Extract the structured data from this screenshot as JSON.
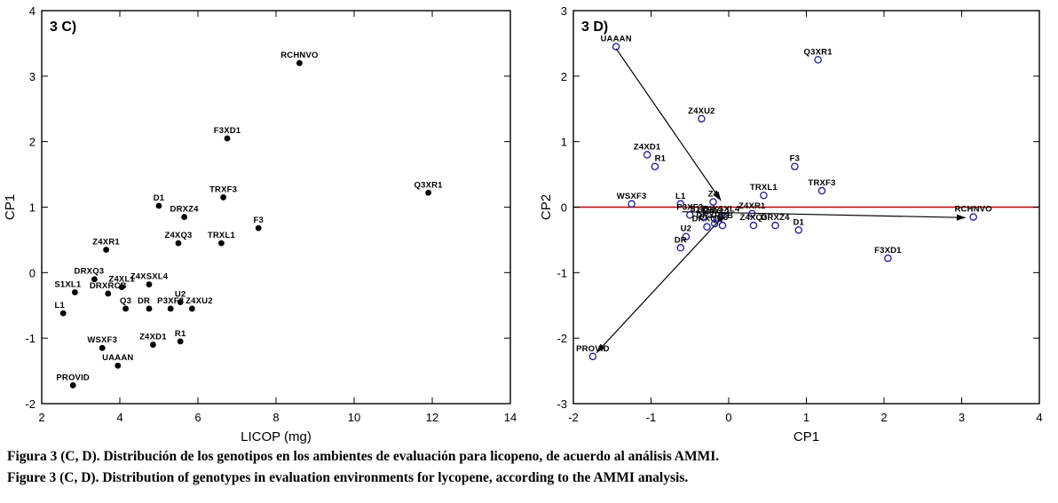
{
  "figure": {
    "caption_es": "Figura 3 (C, D). Distribución de los genotipos en los ambientes de evaluación para licopeno, de acuerdo al análisis AMMI.",
    "caption_en": "Figure 3 (C, D). Distribution of genotypes in evaluation environments for lycopene, according to the AMMI analysis."
  },
  "chart_data": [
    {
      "type": "scatter",
      "panel_label": "3 C)",
      "xlabel": "LICOP (mg)",
      "ylabel": "CP1",
      "xlim": [
        2,
        14
      ],
      "ylim": [
        -2,
        4
      ],
      "xticks": [
        2,
        4,
        6,
        8,
        10,
        12,
        14
      ],
      "yticks": [
        -2,
        -1,
        0,
        1,
        2,
        3,
        4
      ],
      "grid": false,
      "marker": "filled-dot",
      "marker_color": "#000000",
      "points": [
        {
          "label": "RCHNVO",
          "x": 8.6,
          "y": 3.2
        },
        {
          "label": "F3XD1",
          "x": 6.75,
          "y": 2.05
        },
        {
          "label": "Q3XR1",
          "x": 11.9,
          "y": 1.22
        },
        {
          "label": "TRXF3",
          "x": 6.65,
          "y": 1.15
        },
        {
          "label": "D1",
          "x": 5.0,
          "y": 1.02
        },
        {
          "label": "DRXZ4",
          "x": 5.65,
          "y": 0.85
        },
        {
          "label": "F3",
          "x": 7.55,
          "y": 0.68
        },
        {
          "label": "Z4XQ3",
          "x": 5.5,
          "y": 0.45
        },
        {
          "label": "TRXL1",
          "x": 6.6,
          "y": 0.45
        },
        {
          "label": "Z4XR1",
          "x": 3.65,
          "y": 0.35
        },
        {
          "label": "DRXQ3",
          "x": 3.35,
          "y": -0.1,
          "dx": -6
        },
        {
          "label": "Z4XL1",
          "x": 4.05,
          "y": -0.22
        },
        {
          "label": "Z4XSXL4",
          "x": 4.75,
          "y": -0.18
        },
        {
          "label": "S1XL1",
          "x": 2.85,
          "y": -0.3,
          "dx": -8
        },
        {
          "label": "DRXRCB",
          "x": 3.7,
          "y": -0.32
        },
        {
          "label": "Q3",
          "x": 4.15,
          "y": -0.55
        },
        {
          "label": "DR",
          "x": 4.75,
          "y": -0.55,
          "dx": -6
        },
        {
          "label": "P3XF3",
          "x": 5.3,
          "y": -0.55
        },
        {
          "label": "U2",
          "x": 5.55,
          "y": -0.45
        },
        {
          "label": "Z4XU2",
          "x": 5.85,
          "y": -0.55,
          "dx": 8
        },
        {
          "label": "L1",
          "x": 2.55,
          "y": -0.62,
          "dx": -4
        },
        {
          "label": "WSXF3",
          "x": 3.55,
          "y": -1.15
        },
        {
          "label": "Z4XD1",
          "x": 4.85,
          "y": -1.1
        },
        {
          "label": "R1",
          "x": 5.55,
          "y": -1.05
        },
        {
          "label": "UAAAN",
          "x": 3.95,
          "y": -1.42
        },
        {
          "label": "PROVID",
          "x": 2.8,
          "y": -1.72
        }
      ]
    },
    {
      "type": "scatter",
      "panel_label": "3 D)",
      "xlabel": "CP1",
      "ylabel": "CP2",
      "xlim": [
        -2,
        4
      ],
      "ylim": [
        -3,
        3
      ],
      "xticks": [
        -2,
        -1,
        0,
        1,
        2,
        3,
        4
      ],
      "yticks": [
        -3,
        -2,
        -1,
        0,
        1,
        2,
        3
      ],
      "grid": false,
      "marker": "open-circle",
      "marker_color": "#1a1a8c",
      "zero_line_color": "#c00000",
      "points": [
        {
          "label": "UAAAN",
          "x": -1.45,
          "y": 2.45
        },
        {
          "label": "Q3XR1",
          "x": 1.15,
          "y": 2.25
        },
        {
          "label": "Z4XU2",
          "x": -0.35,
          "y": 1.35
        },
        {
          "label": "Z4XD1",
          "x": -1.05,
          "y": 0.8
        },
        {
          "label": "R1",
          "x": -0.95,
          "y": 0.62,
          "dx": 6
        },
        {
          "label": "F3",
          "x": 0.85,
          "y": 0.62
        },
        {
          "label": "TRXL1",
          "x": 0.45,
          "y": 0.18
        },
        {
          "label": "TRXF3",
          "x": 1.2,
          "y": 0.25
        },
        {
          "label": "WSXF3",
          "x": -1.25,
          "y": 0.05
        },
        {
          "label": "L1",
          "x": -0.62,
          "y": 0.05
        },
        {
          "label": "Z4",
          "x": -0.2,
          "y": 0.08
        },
        {
          "label": "P3XF3",
          "x": -0.5,
          "y": -0.12
        },
        {
          "label": "S1XL1",
          "x": -0.33,
          "y": -0.15
        },
        {
          "label": "Z4XL1",
          "x": -0.15,
          "y": -0.18
        },
        {
          "label": "Z4XSXL4",
          "x": -0.1,
          "y": -0.15
        },
        {
          "label": "DRXQ3",
          "x": -0.28,
          "y": -0.3
        },
        {
          "label": "Q3",
          "x": -0.08,
          "y": -0.28
        },
        {
          "label": "DRXRCB",
          "x": -0.18,
          "y": -0.25
        },
        {
          "label": "Z4XR1",
          "x": 0.3,
          "y": -0.1
        },
        {
          "label": "Z4XQ3",
          "x": 0.32,
          "y": -0.28
        },
        {
          "label": "DRXZ4",
          "x": 0.6,
          "y": -0.28
        },
        {
          "label": "D1",
          "x": 0.9,
          "y": -0.35
        },
        {
          "label": "U2",
          "x": -0.55,
          "y": -0.45
        },
        {
          "label": "DR",
          "x": -0.62,
          "y": -0.62
        },
        {
          "label": "F3XD1",
          "x": 2.05,
          "y": -0.78
        },
        {
          "label": "RCHNVO",
          "x": 3.15,
          "y": -0.15
        },
        {
          "label": "PROVID",
          "x": -1.75,
          "y": -2.28
        }
      ],
      "arrows": [
        {
          "from": [
            -1.45,
            2.42
          ],
          "to": [
            -0.1,
            0.1
          ]
        },
        {
          "from": [
            0,
            -0.05
          ],
          "to": [
            -1.7,
            -2.22
          ]
        },
        {
          "from": [
            -0.6,
            -0.07
          ],
          "to": [
            3.05,
            -0.16
          ]
        }
      ]
    }
  ]
}
